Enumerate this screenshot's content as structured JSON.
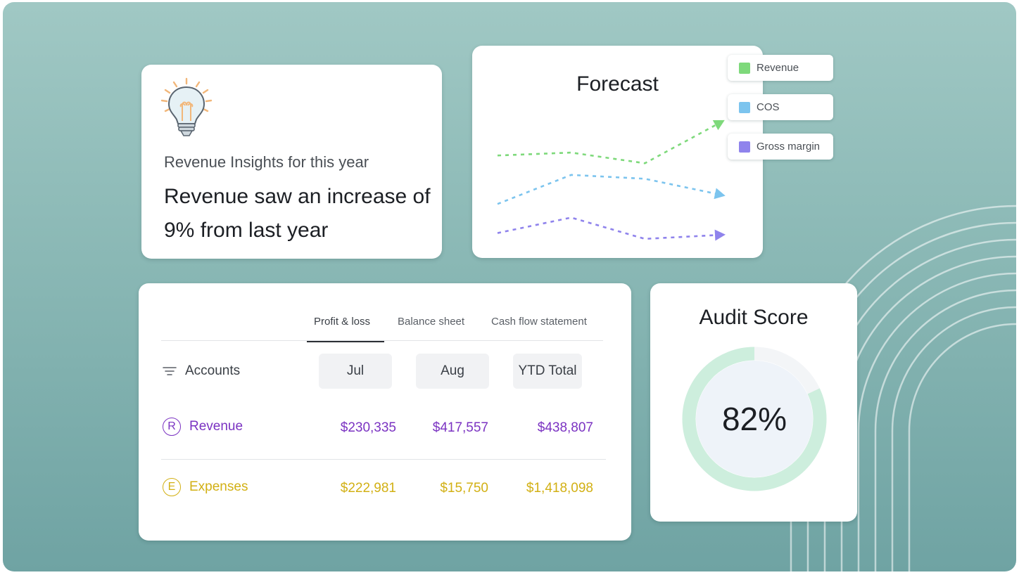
{
  "insight": {
    "subtitle": "Revenue Insights for this year",
    "headline": "Revenue saw an increase of 9% from last year",
    "icon": "lightbulb-icon"
  },
  "forecast": {
    "title": "Forecast",
    "legend": [
      {
        "label": "Revenue",
        "color": "#7ed97b"
      },
      {
        "label": "COS",
        "color": "#7cc4ee"
      },
      {
        "label": "Gross margin",
        "color": "#8f83ec"
      }
    ]
  },
  "chart_data": {
    "type": "line",
    "title": "Forecast",
    "x": [
      1,
      2,
      3,
      4
    ],
    "series": [
      {
        "name": "Revenue",
        "color": "#7ed97b",
        "values": [
          0.52,
          0.55,
          0.44,
          0.85
        ]
      },
      {
        "name": "COS",
        "color": "#7cc4ee",
        "values": [
          0.02,
          0.32,
          0.28,
          0.12
        ]
      },
      {
        "name": "Gross margin",
        "color": "#8f83ec",
        "values": [
          -0.28,
          -0.12,
          -0.34,
          -0.3
        ]
      }
    ],
    "ylim": [
      -0.45,
      1.0
    ],
    "grid": false,
    "legend": "top-right",
    "line_style": "dashed"
  },
  "table": {
    "tabs": [
      "Profit & loss",
      "Balance sheet",
      "Cash flow statement"
    ],
    "active_tab": 0,
    "accounts_label": "Accounts",
    "columns": [
      "Jul",
      "Aug",
      "YTD Total"
    ],
    "rows": [
      {
        "badge": "R",
        "label": "Revenue",
        "values": [
          "$230,335",
          "$417,557",
          "$438,807"
        ],
        "color": "#7b33c2"
      },
      {
        "badge": "E",
        "label": "Expenses",
        "values": [
          "$222,981",
          "$15,750",
          "$1,418,098"
        ],
        "color": "#d2b014"
      }
    ]
  },
  "audit": {
    "title": "Audit Score",
    "value_label": "82%",
    "value": 0.82,
    "ring_color": "#cdeedd",
    "track_color": "#f3f5f7"
  }
}
